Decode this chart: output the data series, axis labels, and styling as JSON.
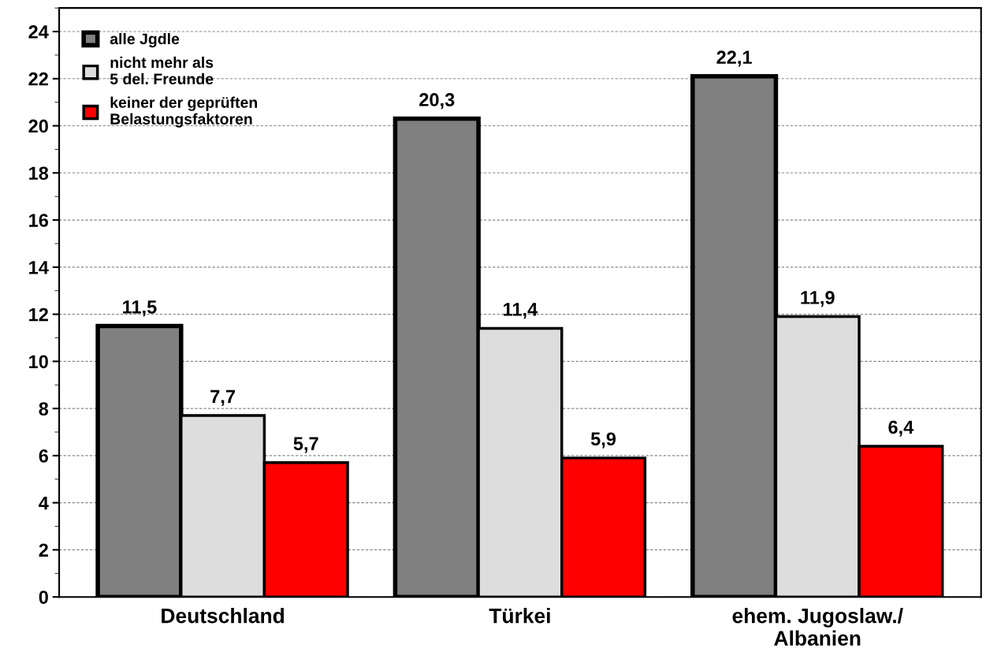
{
  "chart_data": {
    "type": "bar",
    "categories": [
      "Deutschland",
      "Türkei",
      "ehem. Jugoslaw./\nAlbanien"
    ],
    "series": [
      {
        "name": "alle Jgdle",
        "color": "#808080",
        "values": [
          11.5,
          20.3,
          22.1
        ],
        "value_labels": [
          "11,5",
          "20,3",
          "22,1"
        ]
      },
      {
        "name": "nicht mehr als\n5 del. Freunde",
        "color": "#dddddd",
        "values": [
          7.7,
          11.4,
          11.9
        ],
        "value_labels": [
          "7,7",
          "11,4",
          "11,9"
        ]
      },
      {
        "name": "keiner der geprüften\nBelastungsfaktoren",
        "color": "#ff0000",
        "values": [
          5.7,
          5.9,
          6.4
        ],
        "value_labels": [
          "5,7",
          "5,9",
          "6,4"
        ]
      }
    ],
    "ylim": [
      0,
      25
    ],
    "yticks": [
      0,
      2,
      4,
      6,
      8,
      10,
      12,
      14,
      16,
      18,
      20,
      22,
      24
    ],
    "grid": "y",
    "legend": "top left"
  }
}
